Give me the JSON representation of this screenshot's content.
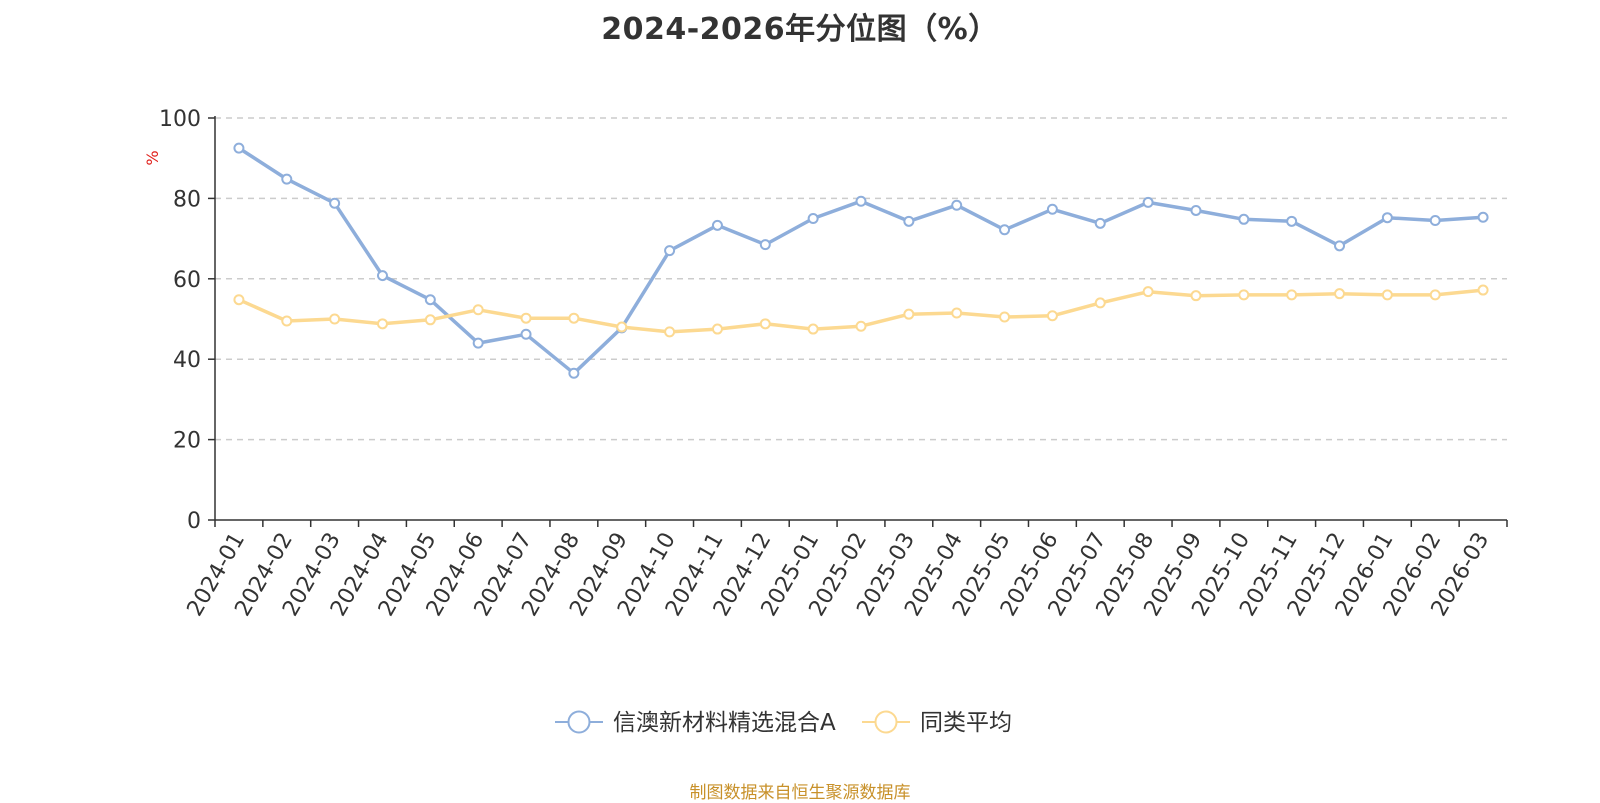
{
  "title": "2024-2026年分位图（%）",
  "source": "制图数据来自恒生聚源数据库",
  "chart_data": {
    "type": "line",
    "title": "2024-2026年分位图（%）",
    "ylabel": "%",
    "ylim": [
      0,
      100
    ],
    "yticks": [
      0,
      20,
      40,
      60,
      80,
      100
    ],
    "grid": true,
    "legend_position": "bottom-center",
    "categories": [
      "2024-01",
      "2024-02",
      "2024-03",
      "2024-04",
      "2024-05",
      "2024-06",
      "2024-07",
      "2024-08",
      "2024-09",
      "2024-10",
      "2024-11",
      "2024-12",
      "2025-01",
      "2025-02",
      "2025-03",
      "2025-04",
      "2025-05",
      "2025-06",
      "2025-07",
      "2025-08",
      "2025-09",
      "2025-10",
      "2025-11",
      "2025-12",
      "2026-01",
      "2026-02",
      "2026-03"
    ],
    "series": [
      {
        "name": "信澳新材料精选混合A",
        "color": "#8eaedb",
        "values": [
          92.5,
          84.8,
          78.8,
          60.8,
          54.8,
          44.0,
          46.2,
          36.5,
          47.8,
          67.0,
          73.3,
          68.5,
          75.0,
          79.3,
          74.3,
          78.3,
          72.2,
          77.3,
          73.8,
          79.0,
          77.0,
          74.8,
          74.3,
          68.2,
          75.2,
          74.5,
          75.3
        ]
      },
      {
        "name": "同类平均",
        "color": "#fcd991",
        "values": [
          54.8,
          49.5,
          50.0,
          48.8,
          49.8,
          52.3,
          50.2,
          50.2,
          48.0,
          46.8,
          47.5,
          48.8,
          47.5,
          48.2,
          51.2,
          51.5,
          50.5,
          50.8,
          54.0,
          56.8,
          55.8,
          56.0,
          56.0,
          56.3,
          56.0,
          56.0,
          57.2
        ]
      }
    ]
  }
}
